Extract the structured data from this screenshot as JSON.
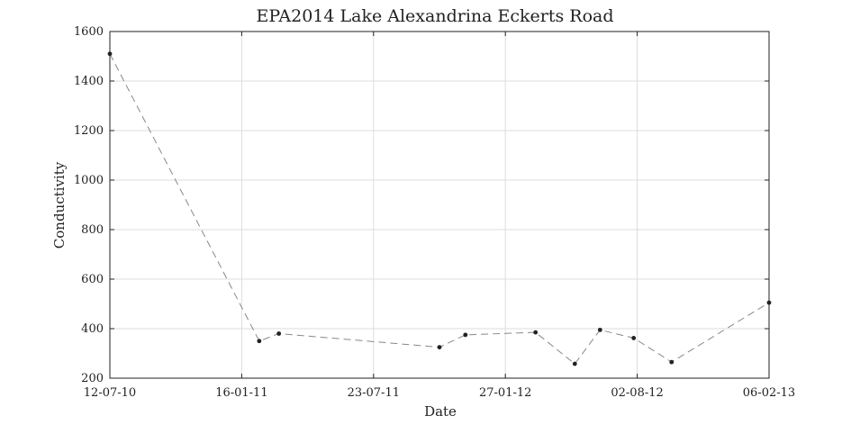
{
  "chart_data": {
    "type": "line",
    "title": "EPA2014 Lake Alexandrina Eckerts Road",
    "xlabel": "Date",
    "ylabel": "Conductivity",
    "ylim": [
      200,
      1600
    ],
    "yticks": [
      200,
      400,
      600,
      800,
      1000,
      1200,
      1400,
      1600
    ],
    "xlim": [
      "2010-07-12",
      "2013-02-06"
    ],
    "xticks": [
      {
        "date": "2010-07-12",
        "label": "12-07-10"
      },
      {
        "date": "2011-01-16",
        "label": "16-01-11"
      },
      {
        "date": "2011-07-23",
        "label": "23-07-11"
      },
      {
        "date": "2012-01-27",
        "label": "27-01-12"
      },
      {
        "date": "2012-08-02",
        "label": "02-08-12"
      },
      {
        "date": "2013-02-06",
        "label": "06-02-13"
      }
    ],
    "grid": true,
    "series": [
      {
        "color": "#888888",
        "line_style": "dashed",
        "marker_color": "#222222",
        "x": [
          "2010-07-12",
          "2011-02-10",
          "2011-03-10",
          "2011-10-25",
          "2011-12-01",
          "2012-03-10",
          "2012-05-05",
          "2012-06-10",
          "2012-07-28",
          "2012-09-20",
          "2013-02-06"
        ],
        "y": [
          1510,
          350,
          380,
          325,
          375,
          385,
          258,
          395,
          362,
          265,
          505
        ]
      }
    ]
  }
}
